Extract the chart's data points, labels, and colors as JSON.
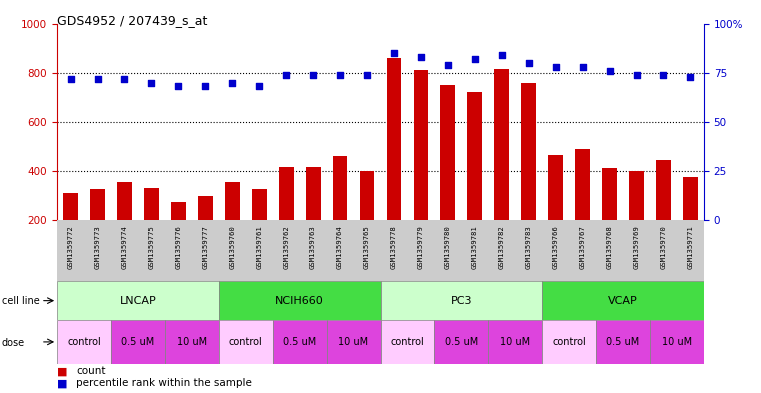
{
  "title": "GDS4952 / 207439_s_at",
  "samples": [
    "GSM1359772",
    "GSM1359773",
    "GSM1359774",
    "GSM1359775",
    "GSM1359776",
    "GSM1359777",
    "GSM1359760",
    "GSM1359761",
    "GSM1359762",
    "GSM1359763",
    "GSM1359764",
    "GSM1359765",
    "GSM1359778",
    "GSM1359779",
    "GSM1359780",
    "GSM1359781",
    "GSM1359782",
    "GSM1359783",
    "GSM1359766",
    "GSM1359767",
    "GSM1359768",
    "GSM1359769",
    "GSM1359770",
    "GSM1359771"
  ],
  "counts": [
    310,
    325,
    355,
    330,
    275,
    300,
    355,
    325,
    415,
    415,
    460,
    400,
    860,
    810,
    750,
    720,
    815,
    760,
    465,
    490,
    410,
    400,
    445,
    375
  ],
  "percentile_ranks": [
    72,
    72,
    72,
    70,
    68,
    68,
    70,
    68,
    74,
    74,
    74,
    74,
    85,
    83,
    79,
    82,
    84,
    80,
    78,
    78,
    76,
    74,
    74,
    73
  ],
  "bar_color": "#cc0000",
  "dot_color": "#0000cc",
  "ylim_left": [
    200,
    1000
  ],
  "ylim_right": [
    0,
    100
  ],
  "yticks_left": [
    200,
    400,
    600,
    800,
    1000
  ],
  "yticks_right": [
    0,
    25,
    50,
    75,
    100
  ],
  "cell_lines": [
    {
      "name": "LNCAP",
      "start": 0,
      "end": 6,
      "color": "#ccffcc"
    },
    {
      "name": "NCIH660",
      "start": 6,
      "end": 12,
      "color": "#44dd44"
    },
    {
      "name": "PC3",
      "start": 12,
      "end": 18,
      "color": "#ccffcc"
    },
    {
      "name": "VCAP",
      "start": 18,
      "end": 24,
      "color": "#44dd44"
    }
  ],
  "dose_groups": [
    {
      "name": "control",
      "start": 0,
      "end": 2,
      "color": "#ffccff"
    },
    {
      "name": "0.5 uM",
      "start": 2,
      "end": 4,
      "color": "#dd44dd"
    },
    {
      "name": "10 uM",
      "start": 4,
      "end": 6,
      "color": "#dd44dd"
    },
    {
      "name": "control",
      "start": 6,
      "end": 8,
      "color": "#ffccff"
    },
    {
      "name": "0.5 uM",
      "start": 8,
      "end": 10,
      "color": "#dd44dd"
    },
    {
      "name": "10 uM",
      "start": 10,
      "end": 12,
      "color": "#dd44dd"
    },
    {
      "name": "control",
      "start": 12,
      "end": 14,
      "color": "#ffccff"
    },
    {
      "name": "0.5 uM",
      "start": 14,
      "end": 16,
      "color": "#dd44dd"
    },
    {
      "name": "10 uM",
      "start": 16,
      "end": 18,
      "color": "#dd44dd"
    },
    {
      "name": "control",
      "start": 18,
      "end": 20,
      "color": "#ffccff"
    },
    {
      "name": "0.5 uM",
      "start": 20,
      "end": 22,
      "color": "#dd44dd"
    },
    {
      "name": "10 uM",
      "start": 22,
      "end": 24,
      "color": "#dd44dd"
    }
  ],
  "bg_color": "#ffffff",
  "sample_bg_color": "#cccccc",
  "label_color_red": "#cc0000",
  "label_color_blue": "#0000cc"
}
